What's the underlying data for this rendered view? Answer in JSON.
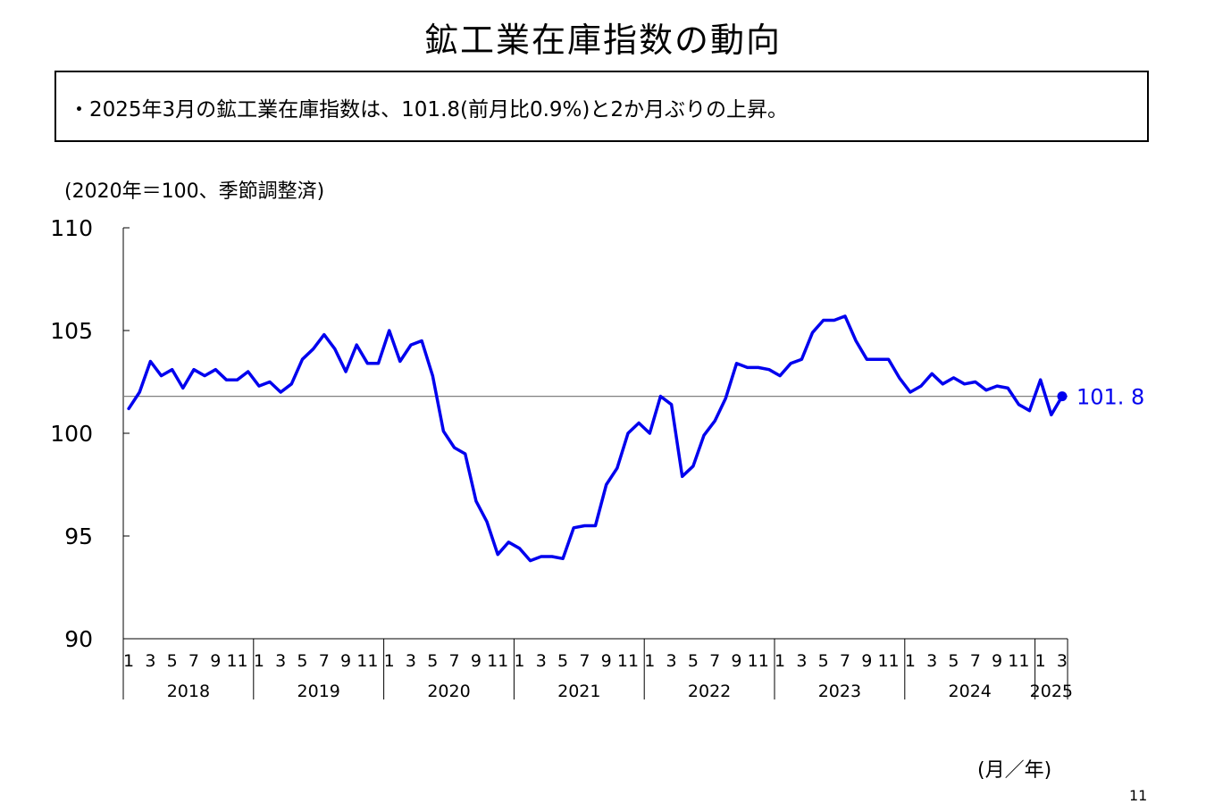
{
  "title": "鉱工業在庫指数の動向",
  "summary": "・2025年3月の鉱工業在庫指数は、101.8(前月比0.9%)と2か月ぶりの上昇。",
  "unit_note": "(2020年＝100、季節調整済)",
  "x_axis_unit": "(月／年)",
  "page_number": "11",
  "colors": {
    "series": "#0000ee",
    "reference_line": "#808080",
    "axis": "#000000"
  },
  "chart_data": {
    "type": "line",
    "title": "",
    "ylim": [
      90,
      110
    ],
    "yticks": [
      90,
      95,
      100,
      105,
      110
    ],
    "month_tick_labels": [
      "1",
      "3",
      "5",
      "7",
      "9",
      "11"
    ],
    "years": [
      "2018",
      "2019",
      "2020",
      "2021",
      "2022",
      "2023",
      "2024",
      "2025"
    ],
    "reference_value": 101.8,
    "latest_label": "101. 8",
    "series": [
      {
        "x_start": "2018-01",
        "values": [
          101.2,
          102.0,
          103.5,
          102.8,
          103.1,
          102.2,
          103.1,
          102.8,
          103.1,
          102.6,
          102.6,
          103.0,
          102.3,
          102.5,
          102.0,
          102.4,
          103.6,
          104.1,
          104.8,
          104.1,
          103.0,
          104.3,
          103.4,
          103.4,
          105.0,
          103.5,
          104.3,
          104.5,
          102.8,
          100.1,
          99.3,
          99.0,
          96.7,
          95.7,
          94.1,
          94.7,
          94.4,
          93.8,
          94.0,
          94.0,
          93.9,
          95.4,
          95.5,
          95.5,
          97.5,
          98.3,
          100.0,
          100.5,
          100.0,
          101.8,
          101.4,
          97.9,
          98.4,
          99.9,
          100.6,
          101.7,
          103.4,
          103.2,
          103.2,
          103.1,
          102.8,
          103.4,
          103.6,
          104.9,
          105.5,
          105.5,
          105.7,
          104.5,
          103.6,
          103.6,
          103.6,
          102.7,
          102.0,
          102.3,
          102.9,
          102.4,
          102.7,
          102.4,
          102.5,
          102.1,
          102.3,
          102.2,
          101.4,
          101.1,
          102.6,
          100.9,
          101.8
        ]
      }
    ]
  }
}
